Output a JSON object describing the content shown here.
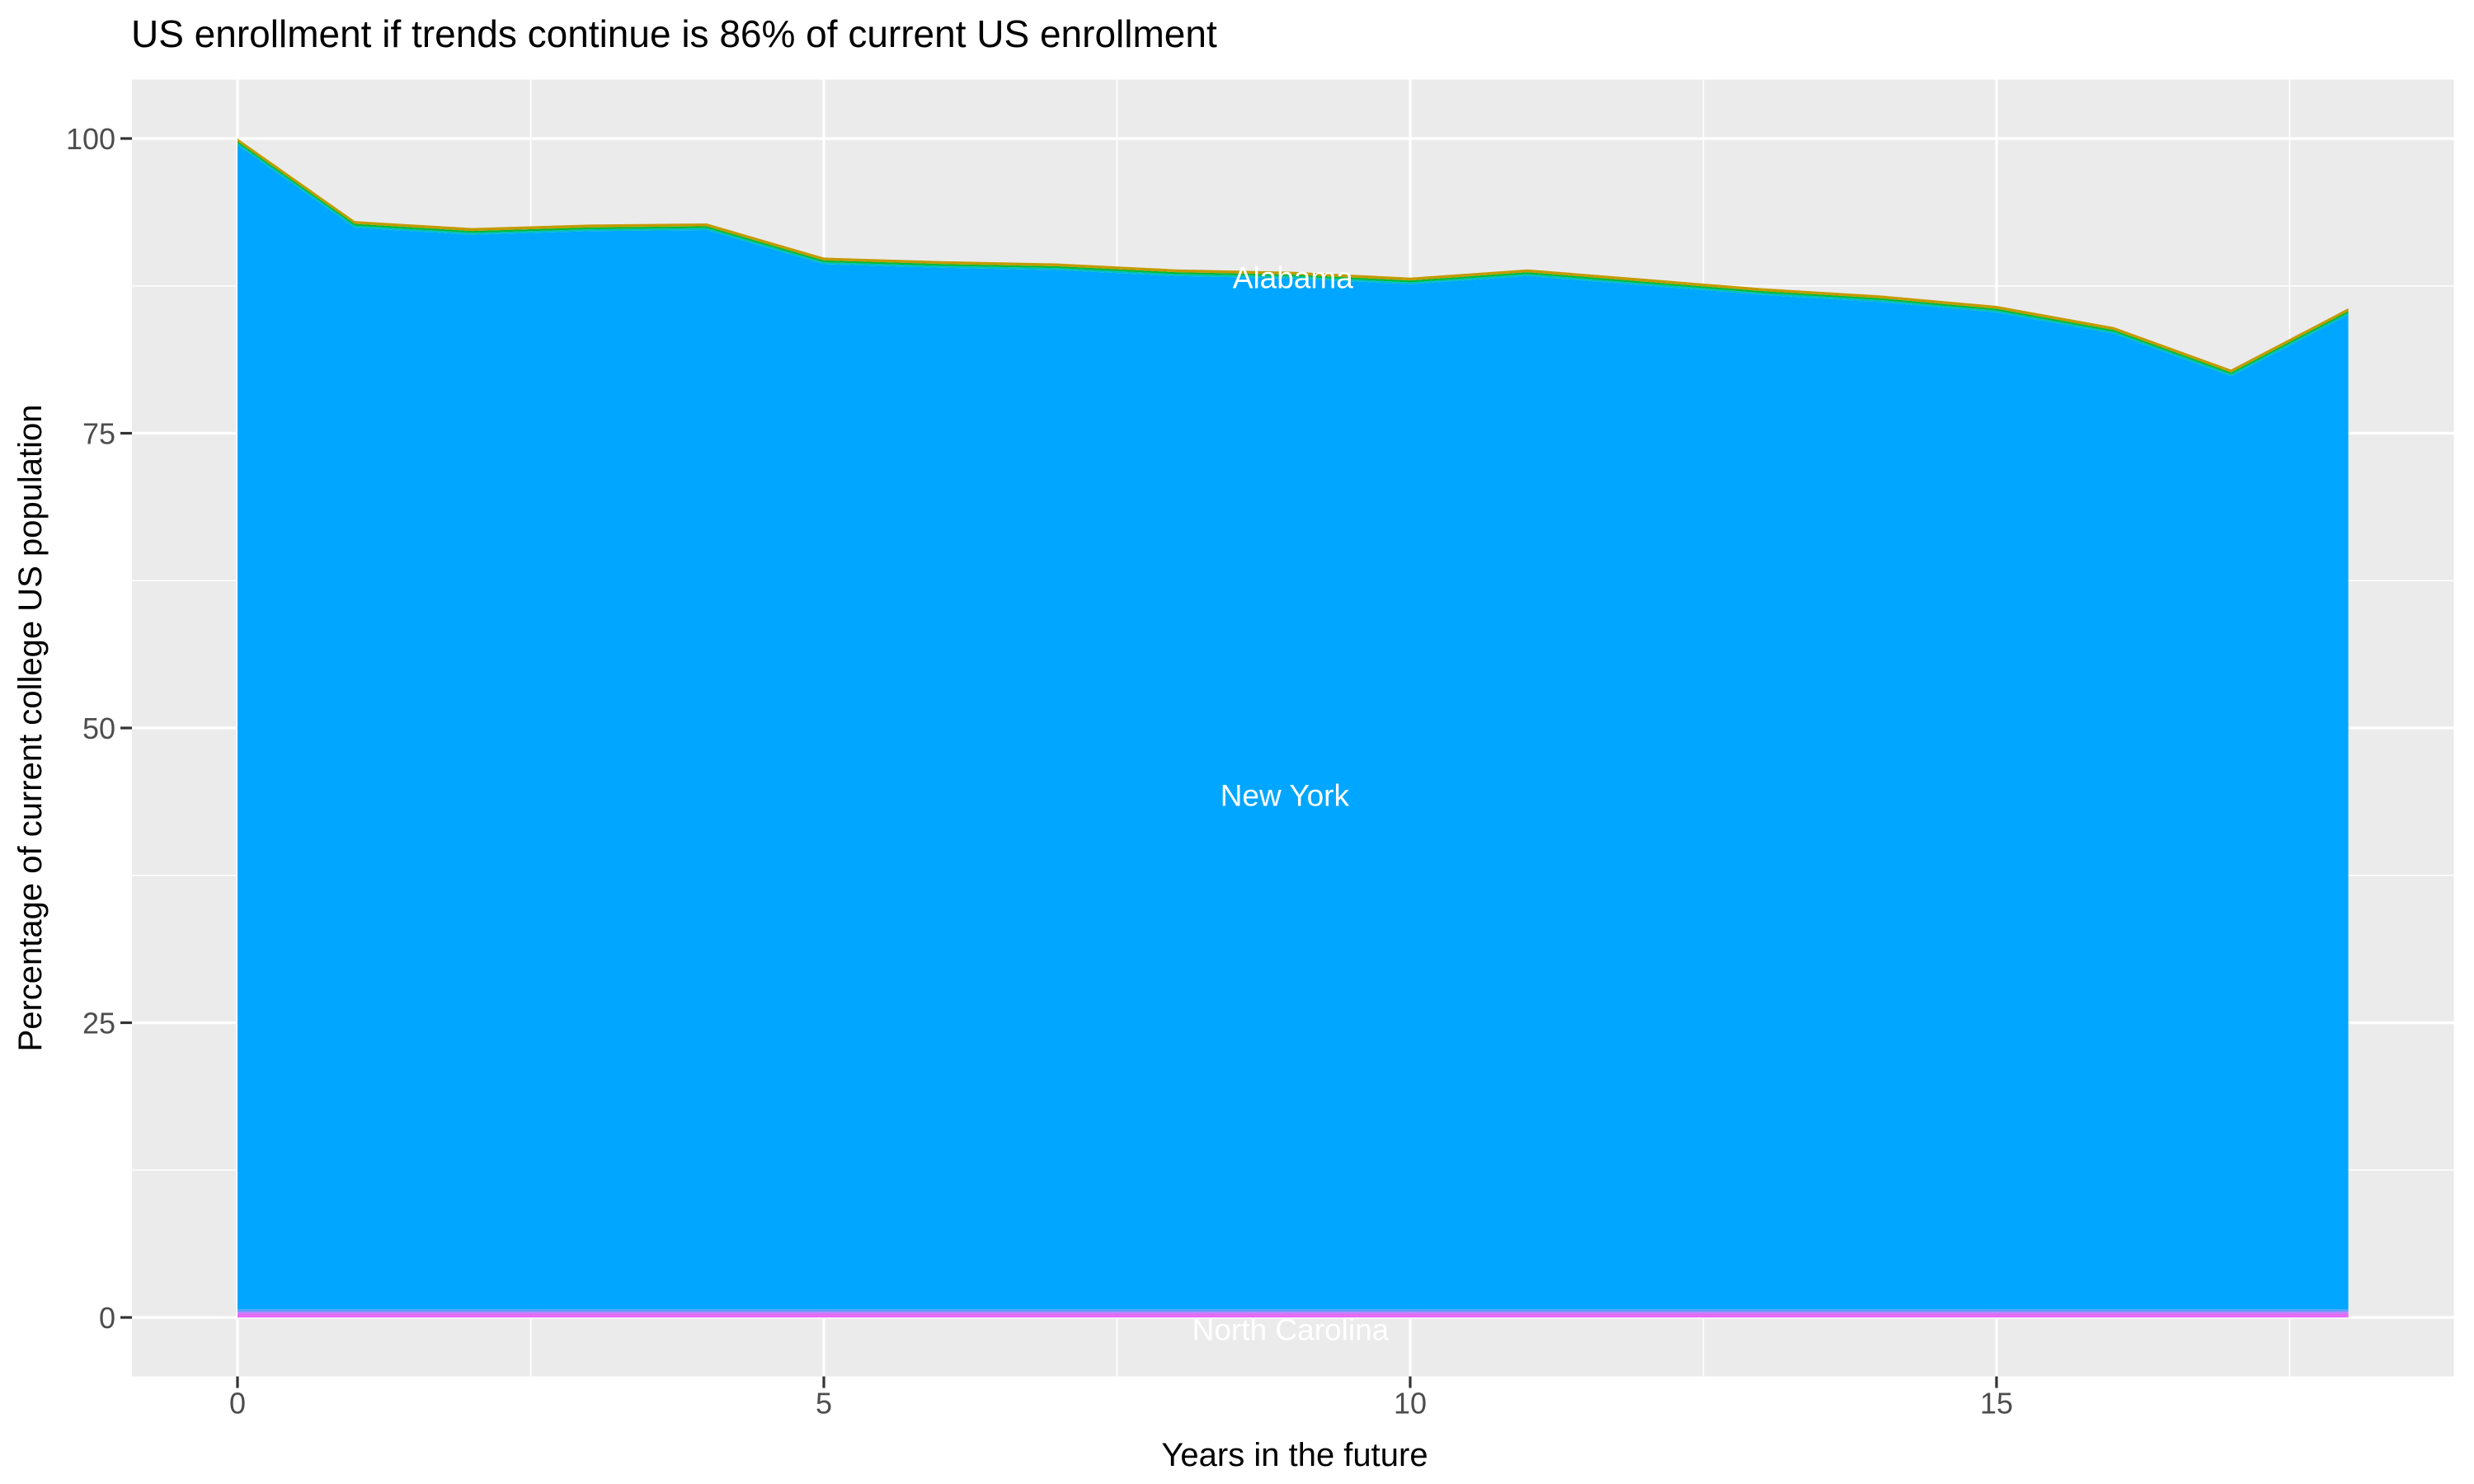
{
  "title": "US enrollment if trends continue is 86% of current US enrollment",
  "chart_data": {
    "type": "area",
    "stacked": true,
    "title": "US enrollment if trends continue is 86% of current US enrollment",
    "xlabel": "Years in the future",
    "ylabel": "Percentage of current college US population",
    "x": [
      0,
      1,
      2,
      3,
      4,
      5,
      6,
      7,
      8,
      9,
      10,
      11,
      12,
      13,
      14,
      15,
      16,
      17,
      18
    ],
    "total_top_edge": [
      100,
      93.0,
      92.4,
      92.7,
      92.8,
      89.9,
      89.6,
      89.4,
      88.9,
      88.7,
      88.2,
      88.9,
      88.1,
      87.3,
      86.7,
      85.8,
      84.0,
      80.4,
      85.6
    ],
    "xlim": [
      -0.9,
      18.9
    ],
    "ylim": [
      -5,
      105
    ],
    "x_major_ticks": [
      {
        "value": 0,
        "label": "0"
      },
      {
        "value": 5,
        "label": "5"
      },
      {
        "value": 10,
        "label": "10"
      },
      {
        "value": 15,
        "label": "15"
      }
    ],
    "x_minor_ticks": [
      2.5,
      7.5,
      12.5,
      17.5
    ],
    "y_major_ticks": [
      {
        "value": 0,
        "label": "0"
      },
      {
        "value": 25,
        "label": "25"
      },
      {
        "value": 50,
        "label": "50"
      },
      {
        "value": 75,
        "label": "75"
      },
      {
        "value": 100,
        "label": "100"
      }
    ],
    "y_minor_ticks": [
      12.5,
      37.5,
      62.5,
      87.5
    ],
    "bands_bottom_up": [
      {
        "name": "North Carolina",
        "color": "#E76BF3",
        "thickness": 0.28
      },
      {
        "name": "",
        "color": "#C77CFF",
        "thickness": 0.2
      },
      {
        "name": "",
        "color": "#619CFF",
        "thickness": 0.2
      },
      {
        "name": "New York",
        "color": "#00A6FF",
        "thickness": "fill"
      },
      {
        "name": "",
        "color": "#00BFC4",
        "thickness": 0.16
      },
      {
        "name": "",
        "color": "#00BA38",
        "thickness": 0.16
      },
      {
        "name": "Alabama",
        "color": "#C49A00",
        "thickness": 0.24
      }
    ],
    "area_labels": [
      {
        "text": "Alabama",
        "x": 9.0,
        "y": 88.2
      },
      {
        "text": "New York",
        "x": 8.93,
        "y": 44.3
      },
      {
        "text": "North Carolina",
        "x": 8.98,
        "y": -1.0
      }
    ],
    "grid": true,
    "legend": "none",
    "colors": {
      "panel_bg": "#EBEBEB",
      "grid": "#FFFFFF",
      "tick_label": "#4D4D4D",
      "tick_mark": "#333333",
      "title": "#000000",
      "axis_title": "#000000",
      "area_label": "#FFFFFF"
    }
  }
}
